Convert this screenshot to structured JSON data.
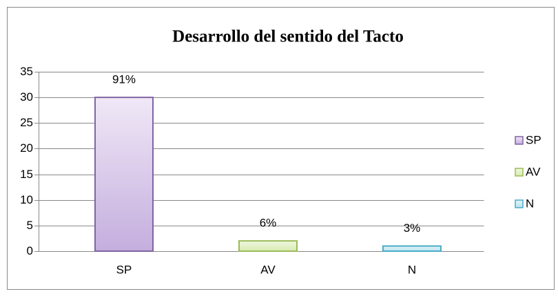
{
  "chart_data": {
    "type": "bar",
    "title": "Desarrollo del sentido del Tacto",
    "categories": [
      "SP",
      "AV",
      "N"
    ],
    "values": [
      30,
      2,
      1
    ],
    "data_labels": [
      "91%",
      "6%",
      "3%"
    ],
    "colors": [
      "#8064a2",
      "#9bbb59",
      "#4bacc6"
    ],
    "ylim": [
      0,
      35
    ],
    "yticks": [
      0,
      5,
      10,
      15,
      20,
      25,
      30,
      35
    ],
    "grid": true,
    "legend": "right"
  }
}
